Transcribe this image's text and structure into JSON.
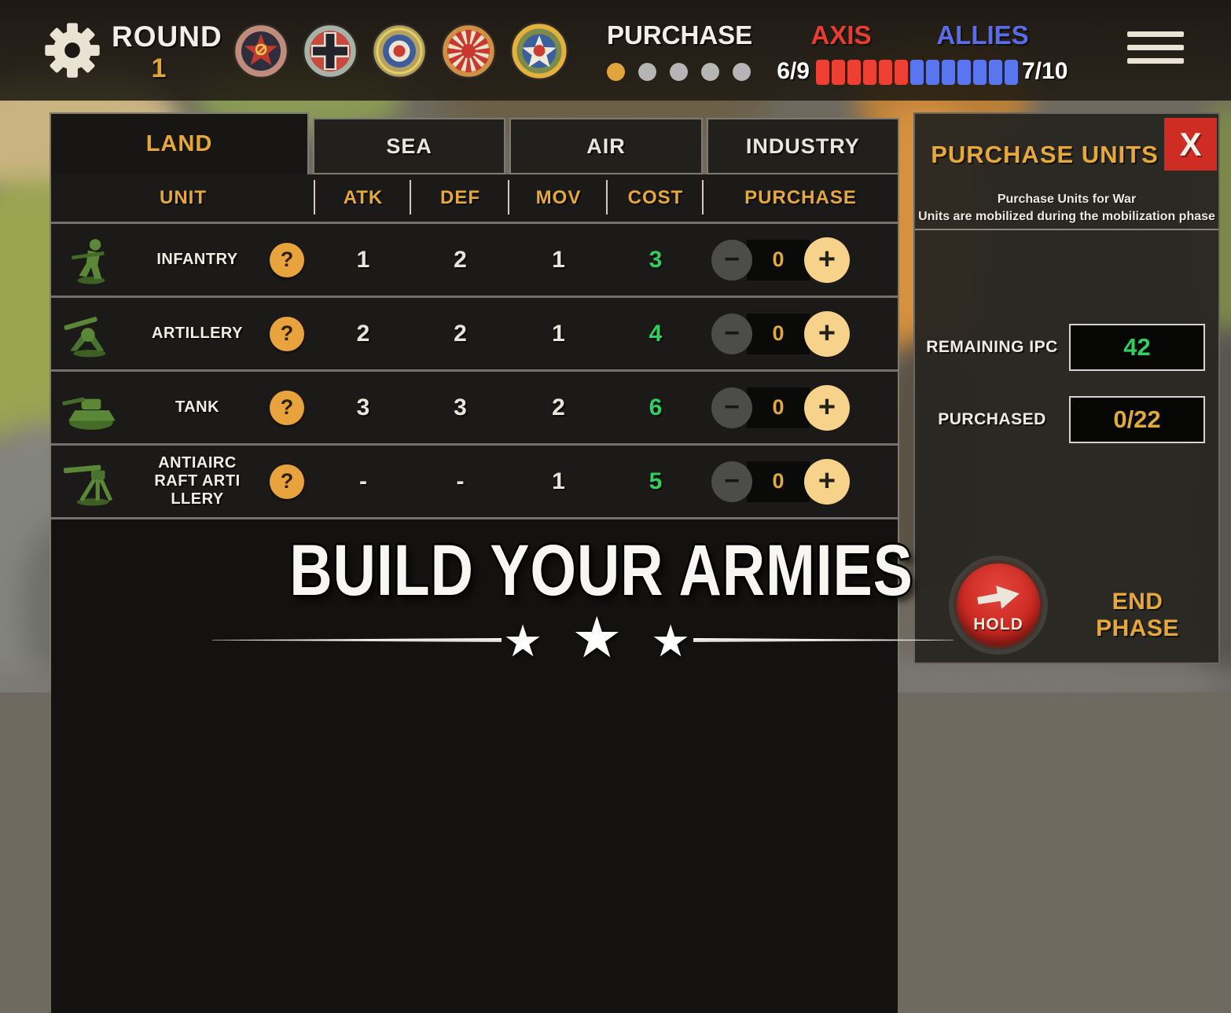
{
  "top_bar": {
    "round_label": "ROUND",
    "round_value": "1",
    "factions": [
      "soviet-union",
      "germany",
      "united-kingdom",
      "japan",
      "united-states"
    ],
    "phase_label": "PURCHASE",
    "phase_dots": {
      "total": 5,
      "active": 1
    },
    "axis_label": "AXIS",
    "axis_score": "6/9",
    "allies_label": "ALLIES",
    "allies_score": "7/10",
    "war_bar": {
      "axis_segments": 6,
      "allies_segments": 7
    }
  },
  "tabs": [
    {
      "label": "LAND",
      "active": true
    },
    {
      "label": "SEA",
      "active": false
    },
    {
      "label": "AIR",
      "active": false
    },
    {
      "label": "INDUSTRY",
      "active": false
    }
  ],
  "table": {
    "columns": [
      "UNIT",
      "ATK",
      "DEF",
      "MOV",
      "COST",
      "PURCHASE"
    ],
    "help_label": "?",
    "controls": {
      "minus_label": "−",
      "plus_label": "+"
    },
    "rows": [
      {
        "name": "INFANTRY",
        "atk": "1",
        "def": "2",
        "mov": "1",
        "cost": "3",
        "qty": "0"
      },
      {
        "name": "ARTILLERY",
        "atk": "2",
        "def": "2",
        "mov": "1",
        "cost": "4",
        "qty": "0"
      },
      {
        "name": "TANK",
        "atk": "3",
        "def": "3",
        "mov": "2",
        "cost": "6",
        "qty": "0"
      },
      {
        "name": "ANTIAIRCRAFT ARTILLERY",
        "atk": "-",
        "def": "-",
        "mov": "1",
        "cost": "5",
        "qty": "0"
      }
    ]
  },
  "banner": {
    "title": "BUILD YOUR ARMIES",
    "star": "★"
  },
  "purchase_panel": {
    "title": "PURCHASE UNITS",
    "close_label": "X",
    "subtitle_line1": "Purchase Units for War",
    "subtitle_line2": "Units are mobilized during the mobilization phase",
    "remaining_ipc_label": "REMAINING IPC",
    "remaining_ipc_value": "42",
    "purchased_label": "PURCHASED",
    "purchased_value": "0/22",
    "hold_label": "HOLD",
    "end_phase_label": "END PHASE"
  },
  "colors": {
    "accent_gold": "#e7a83b",
    "cost_green": "#2fd060",
    "axis_red": "#ee3f33",
    "allies_blue": "#5a76ee",
    "hold_red": "#c8271f",
    "close_red": "#cf2c23"
  }
}
